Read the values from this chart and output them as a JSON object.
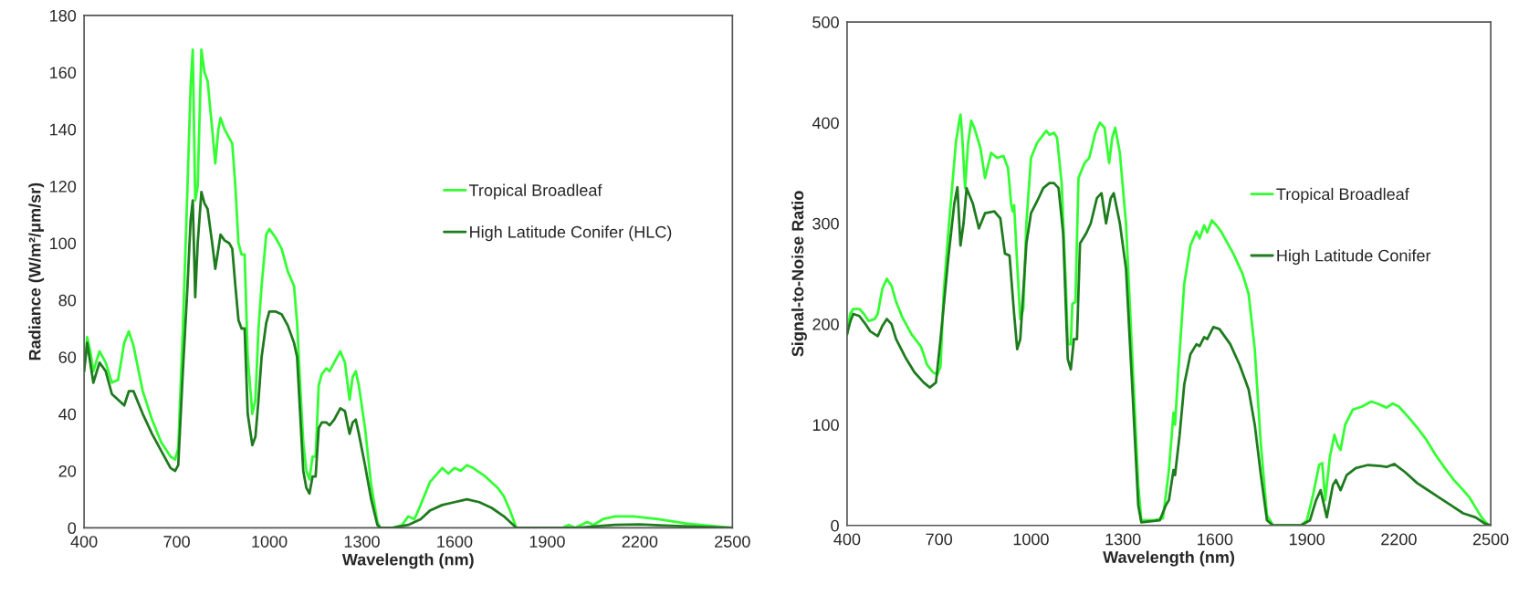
{
  "chart_data": [
    {
      "type": "line",
      "xlabel": "Wavelength (nm)",
      "ylabel": "Radiance (W/m²/μm/sr)",
      "xlim": [
        400,
        2500
      ],
      "xticks": [
        400,
        700,
        1000,
        1300,
        1600,
        1900,
        2200,
        2500
      ],
      "ylim": [
        0,
        180
      ],
      "yticks": [
        0,
        20,
        40,
        60,
        80,
        100,
        120,
        140,
        160,
        180
      ],
      "grid": false,
      "legend": "top right",
      "marker": "none",
      "line_style": "solid",
      "series": [
        {
          "name": "Tropical Broadleaf",
          "color": "#33ff33",
          "x": [
            400,
            410,
            420,
            430,
            450,
            470,
            490,
            510,
            530,
            545,
            560,
            590,
            620,
            650,
            680,
            695,
            705,
            720,
            735,
            745,
            752,
            760,
            768,
            780,
            790,
            800,
            815,
            825,
            835,
            842,
            855,
            870,
            880,
            890,
            900,
            910,
            920,
            930,
            945,
            955,
            965,
            975,
            990,
            1000,
            1020,
            1040,
            1060,
            1080,
            1090,
            1100,
            1110,
            1120,
            1130,
            1140,
            1150,
            1160,
            1170,
            1185,
            1195,
            1210,
            1230,
            1245,
            1260,
            1270,
            1280,
            1290,
            1310,
            1330,
            1350,
            1360,
            1400,
            1430,
            1450,
            1470,
            1490,
            1520,
            1560,
            1580,
            1600,
            1620,
            1640,
            1660,
            1700,
            1740,
            1760,
            1780,
            1800,
            1900,
            1950,
            1970,
            1990,
            2010,
            2030,
            2050,
            2080,
            2120,
            2180,
            2220,
            2260,
            2350,
            2450,
            2500
          ],
          "values": [
            55,
            67,
            62,
            55,
            62,
            58,
            51,
            52,
            65,
            69,
            64,
            48,
            38,
            30,
            25,
            24,
            28,
            70,
            120,
            155,
            168,
            115,
            120,
            168,
            160,
            157,
            140,
            128,
            140,
            144,
            140,
            137,
            135,
            120,
            100,
            96,
            96,
            60,
            40,
            45,
            70,
            85,
            103,
            105,
            102,
            98,
            90,
            85,
            72,
            50,
            30,
            20,
            17,
            25,
            25,
            50,
            54,
            56,
            55,
            58,
            62,
            58,
            45,
            53,
            55,
            50,
            35,
            15,
            2,
            0,
            0,
            1,
            4,
            3,
            8,
            16,
            21,
            19,
            21,
            20,
            22,
            21,
            18,
            14,
            11,
            6,
            0,
            0,
            0,
            1,
            0,
            1,
            2,
            1,
            3,
            4,
            4,
            3.5,
            3,
            1.5,
            0.5,
            0
          ]
        },
        {
          "name": "High Latitude Conifer (HLC)",
          "color": "#1e7b1e",
          "x": [
            400,
            410,
            420,
            430,
            450,
            470,
            490,
            510,
            530,
            545,
            560,
            590,
            620,
            650,
            680,
            695,
            705,
            720,
            735,
            745,
            752,
            760,
            768,
            780,
            790,
            800,
            815,
            825,
            835,
            842,
            855,
            870,
            880,
            890,
            900,
            910,
            920,
            930,
            945,
            955,
            965,
            975,
            990,
            1000,
            1020,
            1040,
            1060,
            1080,
            1090,
            1100,
            1110,
            1120,
            1130,
            1140,
            1150,
            1160,
            1170,
            1185,
            1195,
            1210,
            1230,
            1245,
            1260,
            1270,
            1280,
            1290,
            1310,
            1330,
            1350,
            1360,
            1400,
            1450,
            1490,
            1520,
            1560,
            1600,
            1640,
            1680,
            1720,
            1760,
            1800,
            1900,
            2000,
            2050,
            2120,
            2200,
            2280,
            2400,
            2500
          ],
          "values": [
            55,
            65,
            58,
            51,
            58,
            55,
            47,
            45,
            43,
            48,
            48,
            40,
            33,
            27,
            21,
            20,
            22,
            55,
            85,
            108,
            115,
            81,
            100,
            118,
            114,
            112,
            100,
            91,
            98,
            103,
            101,
            100,
            98,
            85,
            73,
            70,
            70,
            40,
            29,
            32,
            45,
            60,
            72,
            76,
            76,
            75,
            71,
            65,
            60,
            40,
            20,
            14,
            12,
            18,
            18,
            35,
            37,
            37,
            36,
            38,
            42,
            41,
            33,
            37,
            38,
            33,
            22,
            10,
            1,
            0,
            0,
            1,
            3,
            6,
            8,
            9,
            10,
            9,
            7,
            4,
            0,
            0,
            0,
            0.5,
            1,
            1.2,
            0.8,
            0.3,
            0
          ]
        }
      ]
    },
    {
      "type": "line",
      "xlabel": "Wavelength (nm)",
      "ylabel": "Signal-to-Noise Ratio",
      "xlim": [
        400,
        2500
      ],
      "xticks": [
        400,
        700,
        1000,
        1300,
        1600,
        1900,
        2200,
        2500
      ],
      "ylim": [
        0,
        500
      ],
      "yticks": [
        0,
        100,
        200,
        300,
        400,
        500
      ],
      "grid": false,
      "legend": "top right",
      "marker": "none",
      "line_style": "solid",
      "series": [
        {
          "name": "Tropical Broadleaf",
          "color": "#33ff33",
          "x": [
            400,
            410,
            420,
            440,
            455,
            470,
            490,
            500,
            515,
            530,
            545,
            560,
            580,
            610,
            640,
            650,
            660,
            680,
            695,
            705,
            715,
            730,
            755,
            765,
            770,
            775,
            785,
            795,
            805,
            815,
            835,
            850,
            870,
            890,
            910,
            925,
            935,
            940,
            945,
            955,
            965,
            975,
            985,
            1000,
            1020,
            1040,
            1050,
            1060,
            1075,
            1085,
            1100,
            1115,
            1120,
            1130,
            1135,
            1145,
            1155,
            1175,
            1190,
            1210,
            1225,
            1240,
            1255,
            1265,
            1275,
            1290,
            1310,
            1330,
            1350,
            1360,
            1400,
            1430,
            1440,
            1450,
            1465,
            1470,
            1480,
            1500,
            1520,
            1540,
            1550,
            1565,
            1575,
            1590,
            1605,
            1620,
            1660,
            1690,
            1710,
            1730,
            1750,
            1770,
            1790,
            1880,
            1900,
            1920,
            1940,
            1950,
            1960,
            1975,
            1990,
            2000,
            2010,
            2025,
            2050,
            2080,
            2110,
            2130,
            2160,
            2180,
            2200,
            2230,
            2260,
            2290,
            2320,
            2350,
            2380,
            2410,
            2430,
            2450,
            2470,
            2490,
            2500
          ],
          "values": [
            190,
            210,
            215,
            215,
            210,
            203,
            205,
            210,
            235,
            245,
            238,
            222,
            207,
            190,
            178,
            170,
            160,
            152,
            150,
            158,
            230,
            290,
            380,
            400,
            408,
            390,
            335,
            380,
            402,
            395,
            375,
            345,
            370,
            365,
            367,
            355,
            320,
            312,
            318,
            260,
            205,
            215,
            300,
            365,
            380,
            388,
            392,
            388,
            390,
            385,
            340,
            230,
            180,
            180,
            220,
            222,
            345,
            360,
            365,
            390,
            400,
            395,
            360,
            385,
            395,
            370,
            300,
            170,
            40,
            5,
            5,
            7,
            30,
            55,
            112,
            100,
            150,
            240,
            278,
            292,
            285,
            298,
            291,
            303,
            298,
            292,
            270,
            250,
            230,
            175,
            80,
            10,
            0,
            0,
            5,
            30,
            60,
            62,
            25,
            68,
            90,
            80,
            75,
            100,
            115,
            118,
            123,
            121,
            117,
            121,
            118,
            108,
            97,
            85,
            70,
            57,
            45,
            35,
            28,
            18,
            8,
            1,
            0
          ]
        },
        {
          "name": "High Latitude Conifer",
          "color": "#1e7b1e",
          "x": [
            400,
            410,
            420,
            440,
            460,
            475,
            500,
            515,
            530,
            545,
            560,
            590,
            620,
            650,
            670,
            690,
            705,
            730,
            750,
            760,
            770,
            780,
            790,
            810,
            830,
            850,
            880,
            900,
            915,
            930,
            945,
            955,
            965,
            985,
            1000,
            1020,
            1040,
            1060,
            1075,
            1090,
            1105,
            1120,
            1130,
            1140,
            1150,
            1160,
            1180,
            1195,
            1215,
            1230,
            1245,
            1260,
            1270,
            1290,
            1310,
            1330,
            1350,
            1360,
            1420,
            1440,
            1450,
            1465,
            1470,
            1485,
            1500,
            1520,
            1540,
            1550,
            1565,
            1575,
            1595,
            1615,
            1650,
            1680,
            1710,
            1730,
            1750,
            1770,
            1790,
            1880,
            1910,
            1930,
            1945,
            1965,
            1985,
            1995,
            2010,
            2030,
            2060,
            2100,
            2140,
            2160,
            2185,
            2220,
            2260,
            2290,
            2330,
            2370,
            2410,
            2450,
            2480,
            2500
          ],
          "values": [
            190,
            202,
            210,
            208,
            200,
            193,
            188,
            198,
            205,
            200,
            185,
            167,
            152,
            142,
            137,
            142,
            185,
            265,
            320,
            336,
            278,
            300,
            335,
            320,
            295,
            310,
            312,
            305,
            270,
            268,
            210,
            175,
            185,
            280,
            310,
            322,
            335,
            340,
            340,
            335,
            290,
            165,
            155,
            185,
            185,
            280,
            290,
            300,
            325,
            330,
            300,
            325,
            330,
            300,
            255,
            140,
            20,
            3,
            5,
            20,
            25,
            55,
            50,
            90,
            140,
            170,
            180,
            178,
            187,
            185,
            197,
            195,
            180,
            160,
            135,
            100,
            50,
            5,
            0,
            0,
            5,
            25,
            35,
            8,
            40,
            45,
            35,
            50,
            57,
            60,
            59,
            58,
            61,
            53,
            42,
            36,
            28,
            20,
            12,
            8,
            2,
            0
          ]
        }
      ]
    }
  ]
}
